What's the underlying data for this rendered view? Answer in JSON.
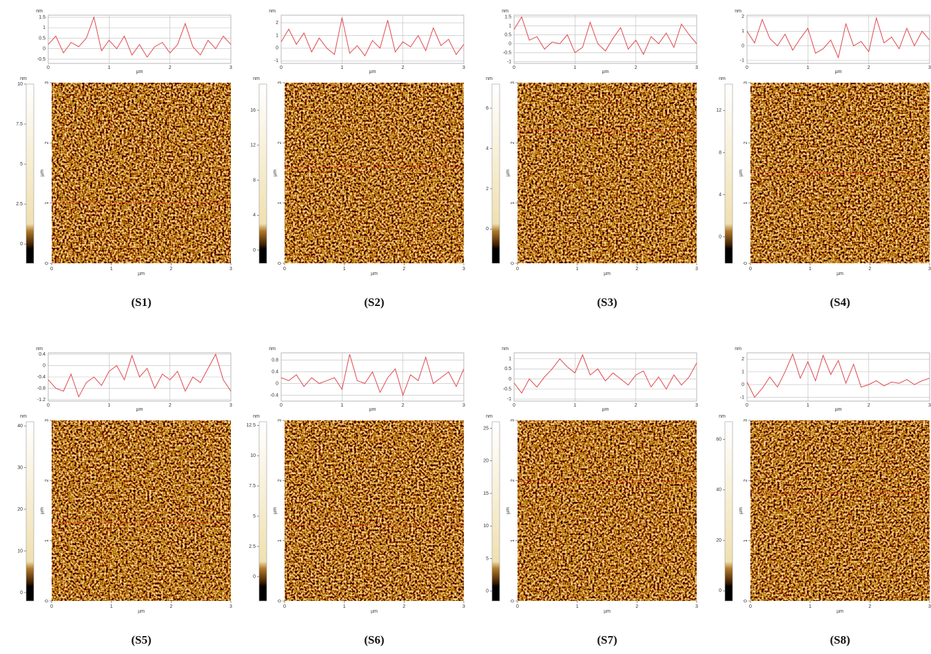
{
  "chart_data": [
    {
      "type": "line",
      "label": "(S1)",
      "ylabel": "nm",
      "xlabel": "µm",
      "x": [
        0,
        0.125,
        0.25,
        0.375,
        0.5,
        0.625,
        0.75,
        0.875,
        1,
        1.125,
        1.25,
        1.375,
        1.5,
        1.625,
        1.75,
        1.875,
        2,
        2.125,
        2.25,
        2.375,
        2.5,
        2.625,
        2.75,
        2.875,
        3
      ],
      "series": [
        {
          "color": "#e0474c",
          "values": [
            0.2,
            0.6,
            -0.2,
            0.3,
            0.1,
            0.5,
            1.5,
            -0.1,
            0.4,
            0.0,
            0.6,
            -0.3,
            0.2,
            -0.4,
            0.1,
            0.3,
            -0.2,
            0.2,
            1.2,
            0.1,
            -0.3,
            0.4,
            0.0,
            0.6,
            0.2
          ]
        }
      ],
      "xlim": [
        0,
        3
      ],
      "xticks": [
        0,
        1,
        2,
        3
      ],
      "ylim": [
        -0.7,
        1.6
      ],
      "yticks": [
        -0.5,
        0,
        0.5,
        1,
        1.5
      ],
      "grid": true,
      "image": {
        "xlabel": "µm",
        "ylabel": "µm",
        "xlim": [
          0,
          3
        ],
        "ylim": [
          0,
          3
        ],
        "xticks": [
          0,
          1,
          2,
          3
        ],
        "yticks": [
          0,
          1,
          2,
          3
        ],
        "profile_y": 1.0
      },
      "colorbar": {
        "label": "nm",
        "lim": [
          -1.2,
          10
        ],
        "ticks": [
          0,
          2.5,
          5,
          7.5,
          10
        ]
      }
    },
    {
      "type": "line",
      "label": "(S2)",
      "ylabel": "nm",
      "xlabel": "µm",
      "x": [
        0,
        0.125,
        0.25,
        0.375,
        0.5,
        0.625,
        0.75,
        0.875,
        1,
        1.125,
        1.25,
        1.375,
        1.5,
        1.625,
        1.75,
        1.875,
        2,
        2.125,
        2.25,
        2.375,
        2.5,
        2.625,
        2.75,
        2.875,
        3
      ],
      "series": [
        {
          "color": "#e0474c",
          "values": [
            0.5,
            1.5,
            0.3,
            1.2,
            -0.3,
            0.8,
            0.0,
            -0.5,
            2.4,
            -0.4,
            0.2,
            -0.6,
            0.6,
            0.0,
            2.2,
            -0.3,
            0.5,
            0.1,
            1.0,
            -0.2,
            1.6,
            0.2,
            0.7,
            -0.5,
            0.3
          ]
        }
      ],
      "xlim": [
        0,
        3
      ],
      "xticks": [
        0,
        1,
        2,
        3
      ],
      "ylim": [
        -1.2,
        2.6
      ],
      "yticks": [
        -1,
        0,
        1,
        2
      ],
      "grid": true,
      "image": {
        "xlabel": "µm",
        "ylabel": "µm",
        "xlim": [
          0,
          3
        ],
        "ylim": [
          0,
          3
        ],
        "xticks": [
          0,
          1,
          2,
          3
        ],
        "yticks": [
          0,
          1,
          2,
          3
        ],
        "profile_y": 1.6
      },
      "colorbar": {
        "label": "nm",
        "lim": [
          -1.5,
          19
        ],
        "ticks": [
          0,
          4,
          8,
          12,
          16
        ]
      }
    },
    {
      "type": "line",
      "label": "(S3)",
      "ylabel": "nm",
      "xlabel": "µm",
      "x": [
        0,
        0.125,
        0.25,
        0.375,
        0.5,
        0.625,
        0.75,
        0.875,
        1,
        1.125,
        1.25,
        1.375,
        1.5,
        1.625,
        1.75,
        1.875,
        2,
        2.125,
        2.25,
        2.375,
        2.5,
        2.625,
        2.75,
        2.875,
        3
      ],
      "series": [
        {
          "color": "#e0474c",
          "values": [
            0.8,
            1.5,
            0.2,
            0.4,
            -0.3,
            0.1,
            0.0,
            0.5,
            -0.5,
            -0.2,
            1.2,
            0.0,
            -0.4,
            0.3,
            0.9,
            -0.3,
            0.2,
            -0.6,
            0.4,
            0.0,
            0.6,
            -0.2,
            1.1,
            0.5,
            0.0
          ]
        }
      ],
      "xlim": [
        0,
        3
      ],
      "xticks": [
        0,
        1,
        2,
        3
      ],
      "ylim": [
        -1.1,
        1.6
      ],
      "yticks": [
        -1,
        -0.5,
        0,
        0.5,
        1,
        1.5
      ],
      "grid": true,
      "image": {
        "xlabel": "µm",
        "ylabel": "µm",
        "xlim": [
          0,
          3
        ],
        "ylim": [
          0,
          3
        ],
        "xticks": [
          0,
          1,
          2,
          3
        ],
        "yticks": [
          0,
          1,
          2,
          3
        ],
        "profile_y": 2.2
      },
      "colorbar": {
        "label": "nm",
        "lim": [
          -1.7,
          7.2
        ],
        "ticks": [
          0,
          2,
          4,
          6
        ]
      }
    },
    {
      "type": "line",
      "label": "(S4)",
      "ylabel": "nm",
      "xlabel": "µm",
      "x": [
        0,
        0.125,
        0.25,
        0.375,
        0.5,
        0.625,
        0.75,
        0.875,
        1,
        1.125,
        1.25,
        1.375,
        1.5,
        1.625,
        1.75,
        1.875,
        2,
        2.125,
        2.25,
        2.375,
        2.5,
        2.625,
        2.75,
        2.875,
        3
      ],
      "series": [
        {
          "color": "#e0474c",
          "values": [
            1.0,
            0.2,
            1.8,
            0.5,
            0.0,
            0.8,
            -0.3,
            0.5,
            1.2,
            -0.5,
            -0.2,
            0.4,
            -0.8,
            1.5,
            0.0,
            0.3,
            -0.4,
            1.9,
            0.2,
            0.6,
            -0.2,
            1.2,
            0.0,
            1.0,
            0.4
          ]
        }
      ],
      "xlim": [
        0,
        3
      ],
      "xticks": [
        0,
        1,
        2,
        3
      ],
      "ylim": [
        -1.2,
        2.1
      ],
      "yticks": [
        -1,
        0,
        1,
        2
      ],
      "grid": true,
      "image": {
        "xlabel": "µm",
        "ylabel": "µm",
        "xlim": [
          0,
          3
        ],
        "ylim": [
          0,
          3
        ],
        "xticks": [
          0,
          1,
          2,
          3
        ],
        "yticks": [
          0,
          1,
          2,
          3
        ],
        "profile_y": 1.5
      },
      "colorbar": {
        "label": "nm",
        "lim": [
          -2.5,
          14.5
        ],
        "ticks": [
          0,
          4,
          8,
          12
        ]
      }
    },
    {
      "type": "line",
      "label": "(S5)",
      "ylabel": "nm",
      "xlabel": "µm",
      "x": [
        0,
        0.125,
        0.25,
        0.375,
        0.5,
        0.625,
        0.75,
        0.875,
        1,
        1.125,
        1.25,
        1.375,
        1.5,
        1.625,
        1.75,
        1.875,
        2,
        2.125,
        2.25,
        2.375,
        2.5,
        2.625,
        2.75,
        2.875,
        3
      ],
      "series": [
        {
          "color": "#e0474c",
          "values": [
            -0.5,
            -0.8,
            -0.9,
            -0.3,
            -1.1,
            -0.6,
            -0.4,
            -0.7,
            -0.2,
            0.0,
            -0.5,
            0.35,
            -0.4,
            -0.1,
            -0.8,
            -0.3,
            -0.5,
            -0.2,
            -0.9,
            -0.4,
            -0.6,
            -0.1,
            0.4,
            -0.5,
            -0.9
          ]
        }
      ],
      "xlim": [
        0,
        3
      ],
      "xticks": [
        0,
        1,
        2,
        3
      ],
      "ylim": [
        -1.25,
        0.45
      ],
      "yticks": [
        -1.2,
        -0.8,
        -0.4,
        0,
        0.4
      ],
      "grid": true,
      "image": {
        "xlabel": "µm",
        "ylabel": "µm",
        "xlim": [
          0,
          3
        ],
        "ylim": [
          0,
          3
        ],
        "xticks": [
          0,
          1,
          2,
          3
        ],
        "yticks": [
          0,
          1,
          2,
          3
        ],
        "profile_y": 1.3
      },
      "colorbar": {
        "label": "nm",
        "lim": [
          -2,
          41
        ],
        "ticks": [
          0,
          10,
          20,
          30,
          40
        ]
      }
    },
    {
      "type": "line",
      "label": "(S6)",
      "ylabel": "nm",
      "xlabel": "µm",
      "x": [
        0,
        0.125,
        0.25,
        0.375,
        0.5,
        0.625,
        0.75,
        0.875,
        1,
        1.125,
        1.25,
        1.375,
        1.5,
        1.625,
        1.75,
        1.875,
        2,
        2.125,
        2.25,
        2.375,
        2.5,
        2.625,
        2.75,
        2.875,
        3
      ],
      "series": [
        {
          "color": "#e0474c",
          "values": [
            0.2,
            0.1,
            0.3,
            -0.1,
            0.2,
            0.0,
            0.1,
            0.2,
            -0.2,
            1.0,
            0.1,
            0.0,
            0.4,
            -0.3,
            0.2,
            0.5,
            -0.4,
            0.3,
            0.1,
            0.9,
            0.0,
            0.2,
            0.4,
            -0.1,
            0.5
          ]
        }
      ],
      "xlim": [
        0,
        3
      ],
      "xticks": [
        0,
        1,
        2,
        3
      ],
      "ylim": [
        -0.6,
        1.05
      ],
      "yticks": [
        -0.4,
        0,
        0.4,
        0.8
      ],
      "grid": true,
      "image": {
        "xlabel": "µm",
        "ylabel": "µm",
        "xlim": [
          0,
          3
        ],
        "ylim": [
          0,
          3
        ],
        "xticks": [
          0,
          1,
          2,
          3
        ],
        "yticks": [
          0,
          1,
          2,
          3
        ],
        "profile_y": 1.27
      },
      "colorbar": {
        "label": "nm",
        "lim": [
          -2,
          12.8
        ],
        "ticks": [
          0,
          2.5,
          5,
          7.5,
          10,
          12.5
        ]
      }
    },
    {
      "type": "line",
      "label": "(S7)",
      "ylabel": "nm",
      "xlabel": "µm",
      "x": [
        0,
        0.125,
        0.25,
        0.375,
        0.5,
        0.625,
        0.75,
        0.875,
        1,
        1.125,
        1.25,
        1.375,
        1.5,
        1.625,
        1.75,
        1.875,
        2,
        2.125,
        2.25,
        2.375,
        2.5,
        2.625,
        2.75,
        2.875,
        3
      ],
      "series": [
        {
          "color": "#e0474c",
          "values": [
            -0.2,
            -0.7,
            0.0,
            -0.4,
            0.1,
            0.5,
            1.0,
            0.6,
            0.3,
            1.2,
            0.2,
            0.5,
            -0.1,
            0.3,
            0.0,
            -0.3,
            0.2,
            0.4,
            -0.4,
            0.1,
            -0.5,
            0.2,
            -0.3,
            0.1,
            0.8
          ]
        }
      ],
      "xlim": [
        0,
        3
      ],
      "xticks": [
        0,
        1,
        2,
        3
      ],
      "ylim": [
        -1.1,
        1.3
      ],
      "yticks": [
        -1,
        -0.5,
        0,
        0.5,
        1
      ],
      "grid": true,
      "image": {
        "xlabel": "µm",
        "ylabel": "µm",
        "xlim": [
          0,
          3
        ],
        "ylim": [
          0,
          3
        ],
        "xticks": [
          0,
          1,
          2,
          3
        ],
        "yticks": [
          0,
          1,
          2,
          3
        ],
        "profile_y": 2.0
      },
      "colorbar": {
        "label": "nm",
        "lim": [
          -1.5,
          26
        ],
        "ticks": [
          0,
          5,
          10,
          15,
          20,
          25
        ]
      }
    },
    {
      "type": "line",
      "label": "(S8)",
      "ylabel": "nm",
      "xlabel": "µm",
      "x": [
        0,
        0.125,
        0.25,
        0.375,
        0.5,
        0.625,
        0.75,
        0.875,
        1,
        1.125,
        1.25,
        1.375,
        1.5,
        1.625,
        1.75,
        1.875,
        2,
        2.125,
        2.25,
        2.375,
        2.5,
        2.625,
        2.75,
        2.875,
        3
      ],
      "series": [
        {
          "color": "#e0474c",
          "values": [
            0.2,
            -1.0,
            -0.3,
            0.6,
            -0.2,
            1.0,
            2.4,
            0.5,
            1.8,
            0.3,
            2.3,
            0.8,
            1.9,
            0.1,
            1.6,
            -0.2,
            0.0,
            0.3,
            -0.1,
            0.2,
            0.1,
            0.4,
            0.0,
            0.3,
            0.5
          ]
        }
      ],
      "xlim": [
        0,
        3
      ],
      "xticks": [
        0,
        1,
        2,
        3
      ],
      "ylim": [
        -1.3,
        2.5
      ],
      "yticks": [
        -1,
        0,
        1,
        2
      ],
      "grid": true,
      "image": {
        "xlabel": "µm",
        "ylabel": "µm",
        "xlim": [
          0,
          3
        ],
        "ylim": [
          0,
          3
        ],
        "xticks": [
          0,
          1,
          2,
          3
        ],
        "yticks": [
          0,
          1,
          2,
          3
        ],
        "profile_y": 1.8
      },
      "colorbar": {
        "label": "nm",
        "lim": [
          -4,
          67
        ],
        "ticks": [
          0,
          20,
          40,
          60
        ]
      }
    }
  ]
}
